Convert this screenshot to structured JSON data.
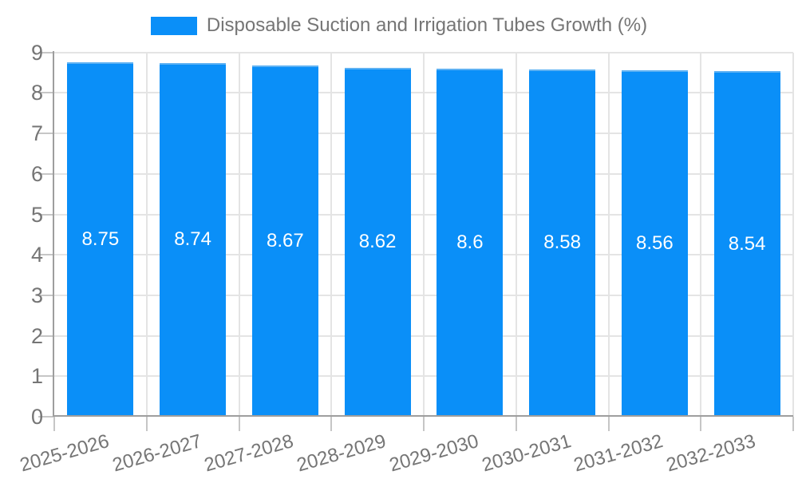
{
  "legend": {
    "position": "top-center",
    "items": [
      {
        "label": "Disposable Suction and Irrigation Tubes Growth (%)",
        "swatch_color": "#0A8FF8"
      }
    ]
  },
  "chart_data": {
    "type": "bar",
    "title": "Disposable Suction and Irrigation Tubes Growth (%)",
    "categories": [
      "2025-2026",
      "2026-2027",
      "2027-2028",
      "2028-2029",
      "2029-2030",
      "2030-2031",
      "2031-2032",
      "2032-2033"
    ],
    "series": [
      {
        "name": "Disposable Suction and Irrigation Tubes Growth (%)",
        "values": [
          8.75,
          8.74,
          8.67,
          8.62,
          8.6,
          8.58,
          8.56,
          8.54
        ],
        "data_labels": [
          "8.75",
          "8.74",
          "8.67",
          "8.62",
          "8.6",
          "8.58",
          "8.56",
          "8.54"
        ]
      }
    ],
    "xlabel": "",
    "ylabel": "",
    "ylim": [
      0,
      9
    ],
    "yticks": [
      0,
      1,
      2,
      3,
      4,
      5,
      6,
      7,
      8,
      9
    ],
    "grid": "horizontal and vertical light gray lines",
    "legend_position": "top",
    "x_label_rotation_deg": -16,
    "value_label_position": "center of bar"
  },
  "colors": {
    "background": "#FFFFFF",
    "bar_fill": "#0A8FF8",
    "bar_border": "#5FB2F3",
    "grid_line": "#E4E4E4",
    "axis_line": "#9E9E9E",
    "tick_mark": "#C6C6C6",
    "axis_text": "#757575",
    "value_label_text": "#FFFFFF"
  }
}
